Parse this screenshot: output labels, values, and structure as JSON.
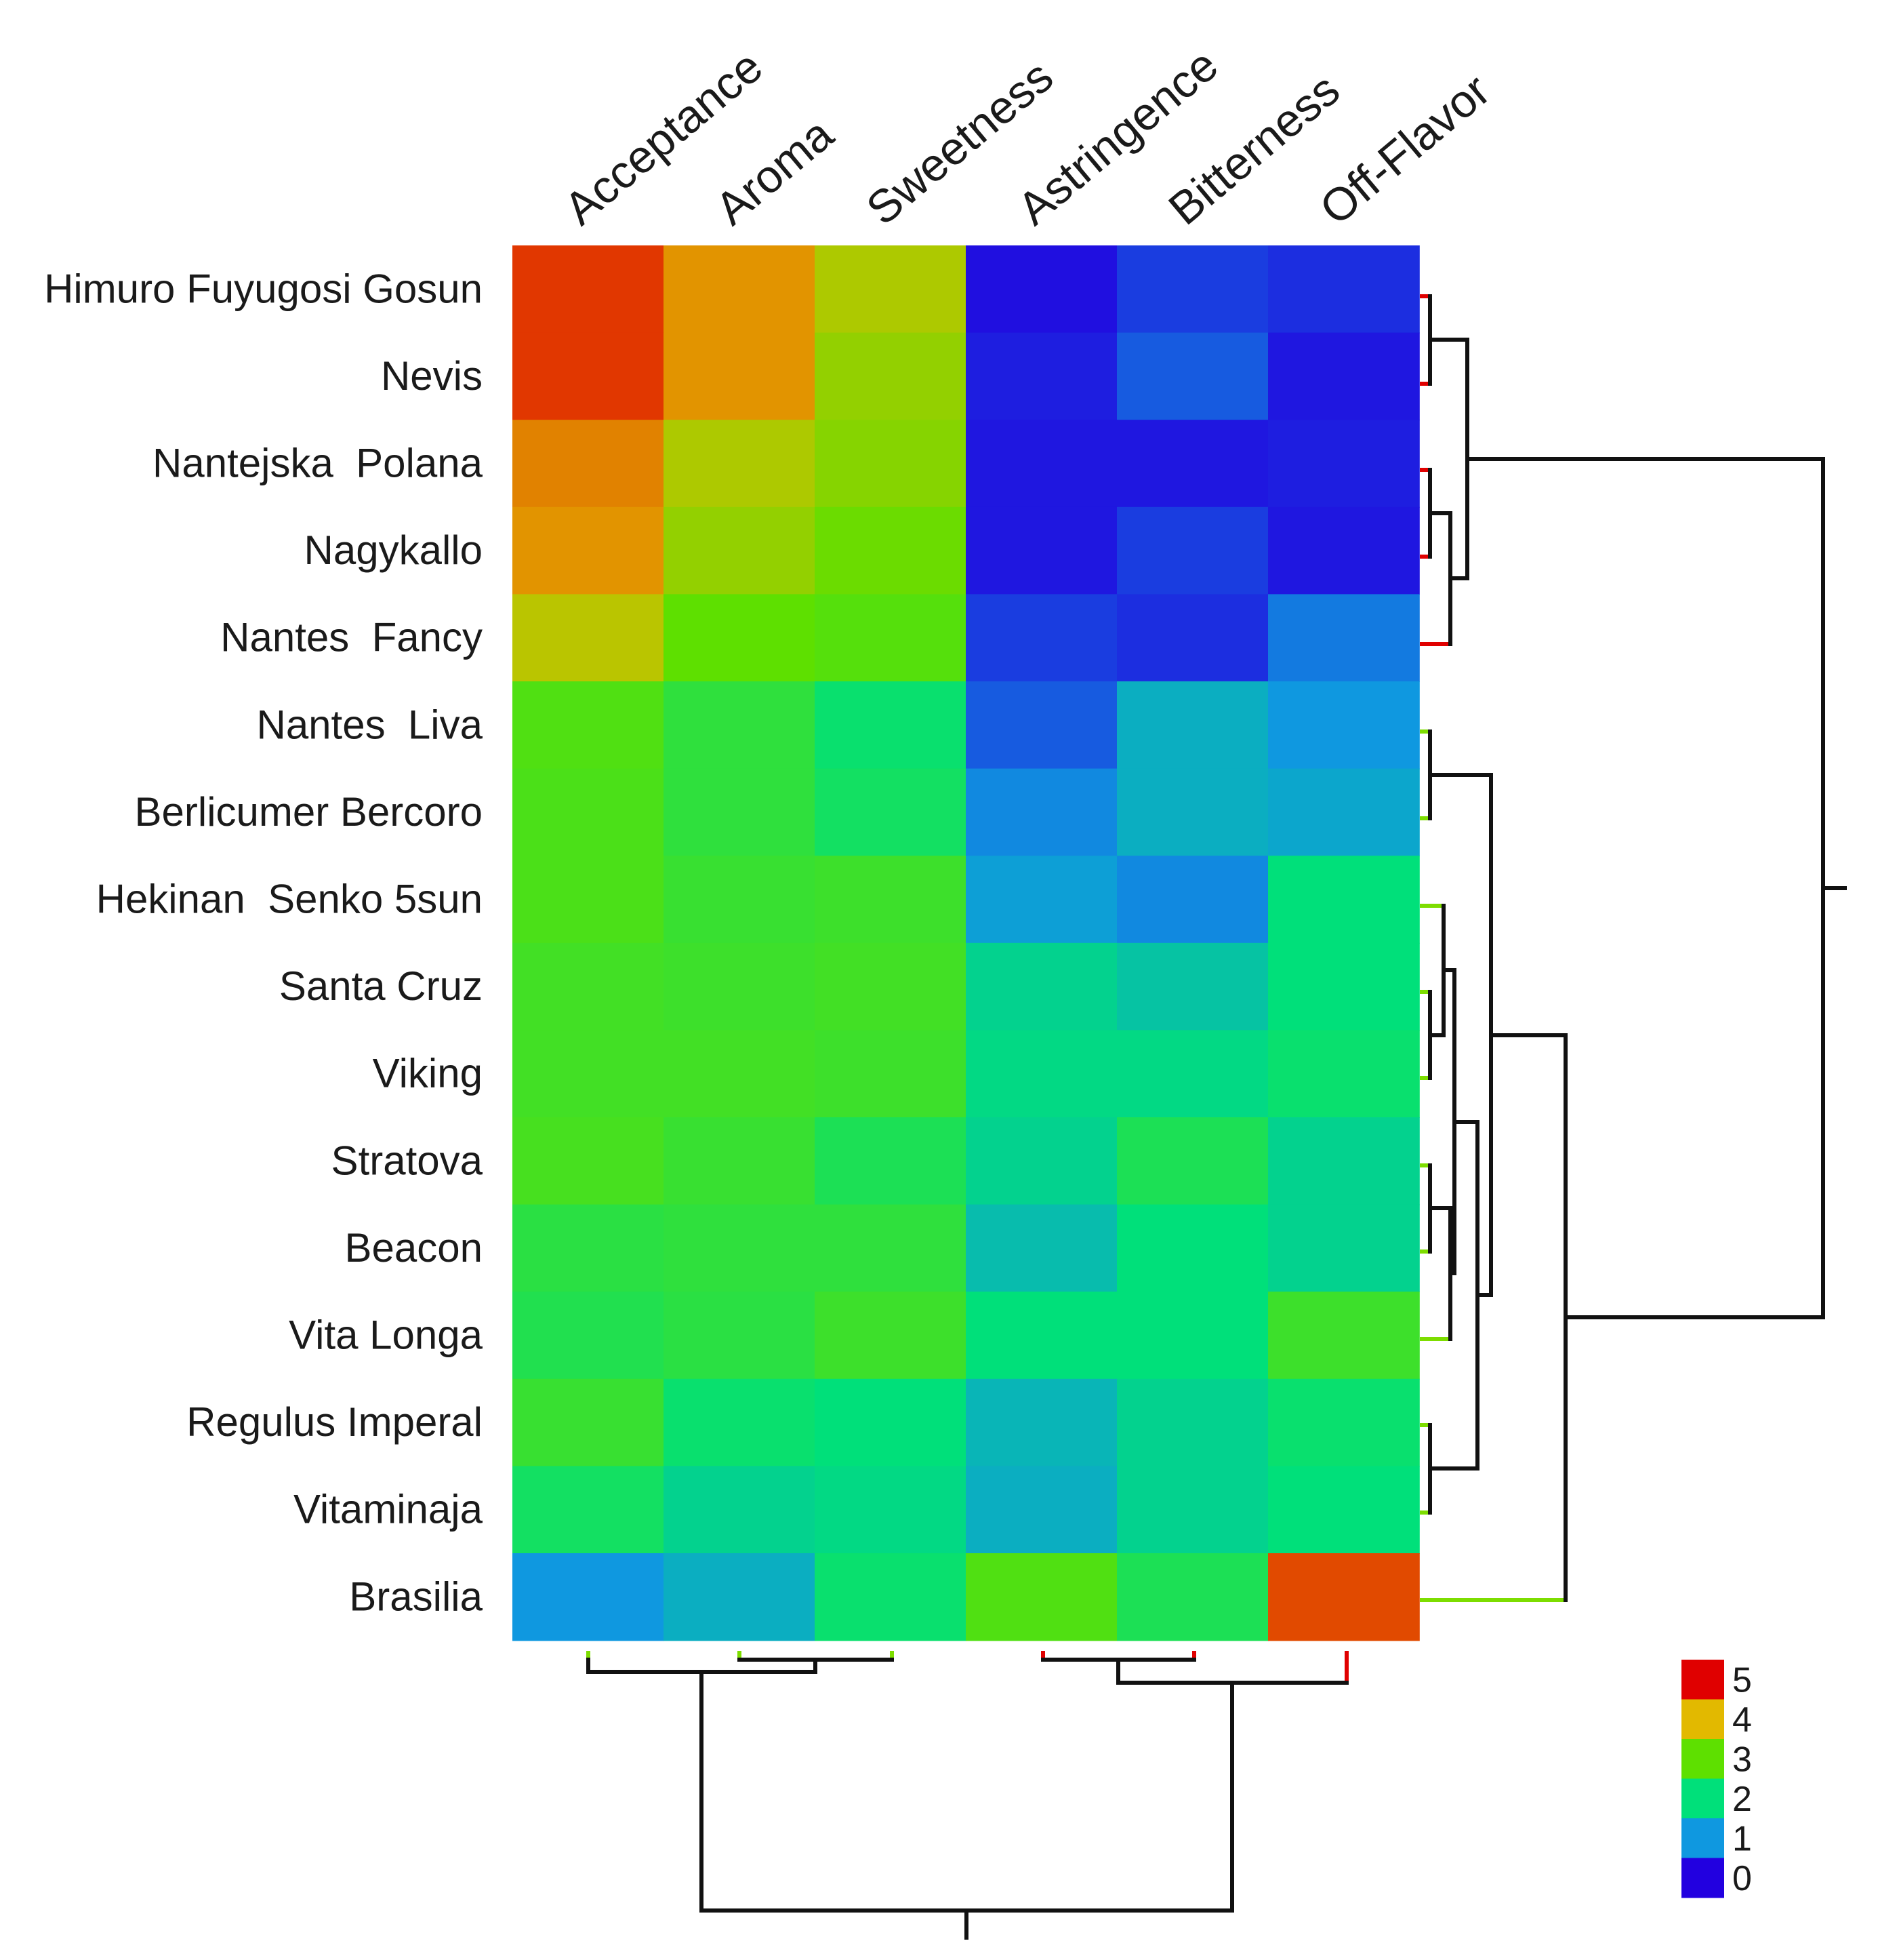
{
  "chart_data": {
    "type": "heatmap",
    "title": "",
    "columns": [
      "Acceptance",
      "Aroma",
      "Sweetness",
      "Astringence",
      "Bitterness",
      "Off-Flavor"
    ],
    "rows": [
      "Himuro Fuyugosi Gosun",
      "Nevis",
      "Nantejska  Polana",
      "Nagykallo",
      "Nantes  Fancy",
      "Nantes  Liva",
      "Berlicumer Bercoro",
      "Hekinan  Senko 5sun",
      "Santa Cruz",
      "Viking",
      "Stratova",
      "Beacon",
      "Vita Longa",
      "Regulus Imperal",
      "Vitaminaja",
      "Brasilia"
    ],
    "values": [
      [
        4.7,
        4.2,
        3.6,
        0.1,
        0.4,
        0.3
      ],
      [
        4.7,
        4.2,
        3.4,
        0.2,
        0.6,
        0.15
      ],
      [
        4.3,
        3.6,
        3.3,
        0.15,
        0.15,
        0.2
      ],
      [
        4.2,
        3.4,
        3.1,
        0.15,
        0.4,
        0.15
      ],
      [
        3.7,
        3.0,
        2.9,
        0.4,
        0.3,
        0.8
      ],
      [
        2.85,
        2.5,
        2.1,
        0.6,
        1.3,
        1.0
      ],
      [
        2.8,
        2.5,
        2.2,
        0.9,
        1.3,
        1.2
      ],
      [
        2.8,
        2.6,
        2.65,
        1.1,
        0.9,
        2.0
      ],
      [
        2.7,
        2.65,
        2.7,
        1.8,
        1.6,
        2.0
      ],
      [
        2.7,
        2.7,
        2.65,
        1.9,
        1.9,
        2.1
      ],
      [
        2.75,
        2.6,
        2.3,
        1.8,
        2.3,
        1.8
      ],
      [
        2.45,
        2.5,
        2.5,
        1.5,
        2.0,
        1.8
      ],
      [
        2.35,
        2.45,
        2.65,
        2.0,
        2.0,
        2.65
      ],
      [
        2.6,
        2.1,
        2.0,
        1.4,
        1.8,
        2.1
      ],
      [
        2.2,
        1.8,
        1.9,
        1.3,
        1.8,
        2.0
      ],
      [
        1.0,
        1.3,
        2.1,
        2.85,
        2.3,
        4.6
      ]
    ],
    "colorbar": {
      "range": [
        0,
        5
      ],
      "ticks": [
        "5",
        "4",
        "3",
        "2",
        "1",
        "0"
      ],
      "colors": [
        "#e00000",
        "#e2b900",
        "#5ee000",
        "#00e07a",
        "#0f98e0",
        "#2200e0"
      ]
    },
    "dendrograms": [
      "row clustering (right)",
      "column clustering (bottom)"
    ]
  }
}
